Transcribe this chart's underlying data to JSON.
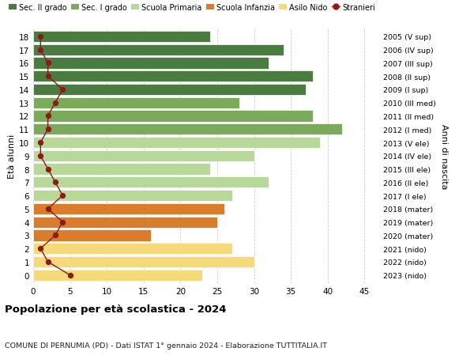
{
  "ages": [
    18,
    17,
    16,
    15,
    14,
    13,
    12,
    11,
    10,
    9,
    8,
    7,
    6,
    5,
    4,
    3,
    2,
    1,
    0
  ],
  "right_labels": [
    "2005 (V sup)",
    "2006 (IV sup)",
    "2007 (III sup)",
    "2008 (II sup)",
    "2009 (I sup)",
    "2010 (III med)",
    "2011 (II med)",
    "2012 (I med)",
    "2013 (V ele)",
    "2014 (IV ele)",
    "2015 (III ele)",
    "2016 (II ele)",
    "2017 (I ele)",
    "2018 (mater)",
    "2019 (mater)",
    "2020 (mater)",
    "2021 (nido)",
    "2022 (nido)",
    "2023 (nido)"
  ],
  "bar_values": [
    24,
    34,
    32,
    38,
    37,
    28,
    38,
    42,
    39,
    30,
    24,
    32,
    27,
    26,
    25,
    16,
    27,
    30,
    23
  ],
  "bar_colors": [
    "#4a7c3f",
    "#4a7c3f",
    "#4a7c3f",
    "#4a7c3f",
    "#4a7c3f",
    "#7aaa5a",
    "#7aaa5a",
    "#7aaa5a",
    "#b8d89a",
    "#b8d89a",
    "#b8d89a",
    "#b8d89a",
    "#b8d89a",
    "#d97c2b",
    "#d97c2b",
    "#d97c2b",
    "#f5d97a",
    "#f5d97a",
    "#f5d97a"
  ],
  "stranieri_values": [
    1,
    1,
    2,
    2,
    4,
    3,
    2,
    2,
    1,
    1,
    2,
    3,
    4,
    2,
    4,
    3,
    1,
    2,
    5
  ],
  "title": "Popolazione per età scolastica - 2024",
  "subtitle": "COMUNE DI PERNUMIA (PD) - Dati ISTAT 1° gennaio 2024 - Elaborazione TUTTITALIA.IT",
  "ylabel_left": "Età alunni",
  "ylabel_right": "Anni di nascita",
  "xlim": [
    0,
    47
  ],
  "xticks": [
    0,
    5,
    10,
    15,
    20,
    25,
    30,
    35,
    40,
    45
  ],
  "legend_labels": [
    "Sec. II grado",
    "Sec. I grado",
    "Scuola Primaria",
    "Scuola Infanzia",
    "Asilo Nido",
    "Stranieri"
  ],
  "legend_colors": [
    "#4a7c3f",
    "#7aaa5a",
    "#b8d89a",
    "#d97c2b",
    "#f5d97a",
    "#9b1c1c"
  ],
  "background_color": "#ffffff",
  "grid_color": "#cccccc",
  "stranieri_line_color": "#8b1a1a"
}
